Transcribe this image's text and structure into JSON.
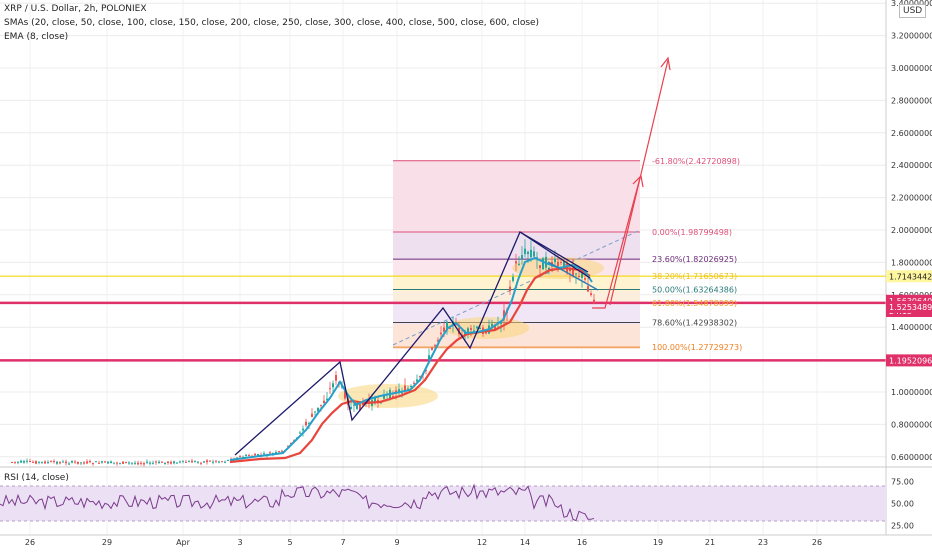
{
  "header": {
    "title": "XRP / U.S. Dollar, 2h, POLONIEX",
    "sma_label": "SMAs (20, close, 50, close, 100, close, 150, close, 200, close, 250, close, 300, close, 400, close, 500, close, 600, close)",
    "ema_label": "EMA (8, close)",
    "currency": "USD"
  },
  "chart_data": [
    {
      "type": "line",
      "y_axis_ticks": [
        "3.40000000",
        "3.20000000",
        "3.00000000",
        "2.80000000",
        "2.60000000",
        "2.40000000",
        "2.20000000",
        "2.00000000",
        "1.80000000",
        "1.60000000",
        "1.40000000",
        "1.20000000",
        "1.00000000",
        "0.80000000",
        "0.60000000"
      ],
      "x_axis_ticks": [
        "26",
        "29",
        "Apr",
        "3",
        "5",
        "7",
        "9",
        "12",
        "14",
        "16",
        "19",
        "21",
        "23",
        "26"
      ],
      "fib_levels": [
        {
          "label": "-61.80%(2.42720898)",
          "value": 2.42720898,
          "color": "#e0507a"
        },
        {
          "label": "0.00%(1.98799498)",
          "value": 1.98799498,
          "color": "#e0507a"
        },
        {
          "label": "23.60%(1.82026925)",
          "value": 1.82026925,
          "color": "#6b2a7a"
        },
        {
          "label": "38.20%(1.71650673)",
          "value": 1.71650673,
          "color": "#f0c020"
        },
        {
          "label": "50.00%(1.63264386)",
          "value": 1.63264386,
          "color": "#2a7a7a"
        },
        {
          "label": "61.80%(1.54878099)",
          "value": 1.54878099,
          "color": "#f0a020"
        },
        {
          "label": "78.60%(1.42938302)",
          "value": 1.42938302,
          "color": "#444444"
        },
        {
          "label": "100.00%(1.27729273)",
          "value": 1.27729273,
          "color": "#f08020"
        }
      ],
      "price_badges": [
        {
          "label": "1.71434421",
          "value": 1.71434421,
          "bg": "#fff6a0",
          "fg": "#222222"
        },
        {
          "label": "1.56306404",
          "value": 1.56306404,
          "bg": "#e0306a",
          "fg": "#ffffff"
        },
        {
          "label": "24:15",
          "value": 1.5,
          "bg": "#e0306a",
          "fg": "#ffffff"
        },
        {
          "label": "1.52534898",
          "value": 1.52534898,
          "bg": "#e0306a",
          "fg": "#ffffff"
        },
        {
          "label": "1.19520963",
          "value": 1.19520963,
          "bg": "#e0306a",
          "fg": "#ffffff"
        }
      ],
      "horizontal_lines": [
        {
          "value": 1.71434421,
          "color": "#f5e14a"
        },
        {
          "value": 1.55,
          "color": "#e0306a"
        },
        {
          "value": 1.19520963,
          "color": "#e0306a"
        }
      ]
    },
    {
      "type": "line",
      "title": "RSI (14, close)",
      "y_axis_ticks": [
        "75.00",
        "50.00",
        "25.00"
      ],
      "band": [
        30,
        70
      ]
    }
  ]
}
